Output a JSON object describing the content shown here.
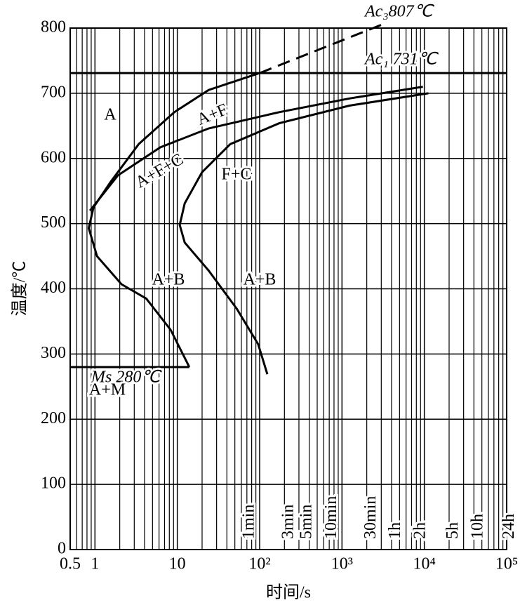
{
  "chart_data": {
    "type": "line",
    "x_label": "时间/s",
    "y_label": "温度/℃",
    "xscale": "log",
    "xlim": [
      0.5,
      100000
    ],
    "xticks": [
      {
        "value": 0.5,
        "label": "0.5"
      },
      1,
      10,
      {
        "value": 100,
        "label": "10²"
      },
      {
        "value": 1000,
        "label": "10³"
      },
      {
        "value": 10000,
        "label": "10⁴"
      },
      {
        "value": 100000,
        "label": "10⁵"
      }
    ],
    "ylim": [
      0,
      800
    ],
    "yticks": [
      0,
      100,
      200,
      300,
      400,
      500,
      600,
      700,
      800
    ],
    "grid": true,
    "minor_grid": true,
    "series": [
      {
        "color": "#000000",
        "dash": false,
        "x": [
          14,
          8.3,
          4.2,
          2.1,
          1.06,
          0.84,
          0.96,
          1.57,
          3.4,
          9.2,
          24,
          100
        ],
        "values": [
          280,
          337,
          385,
          407,
          450,
          493,
          525,
          565,
          622,
          671,
          705,
          731
        ]
      },
      {
        "color": "#000000",
        "dash": true,
        "label": "Ac₃807℃",
        "x": [
          100,
          3300
        ],
        "values": [
          731,
          807
        ]
      },
      {
        "color": "#000000",
        "dash": false,
        "x": [
          0.87,
          1.9,
          6.2,
          24,
          173,
          1230,
          9600
        ],
        "values": [
          520,
          574,
          617,
          646,
          671,
          692,
          710
        ]
      },
      {
        "color": "#000000",
        "dash": false,
        "x": [
          124,
          96,
          53,
          24,
          12.3,
          10.7,
          12.3,
          20,
          44,
          173,
          1230,
          11200
        ],
        "values": [
          269,
          315,
          369,
          428,
          471,
          498,
          531,
          579,
          622,
          654,
          681,
          700
        ]
      }
    ],
    "reference_lines": [
      {
        "label": "Ac₁ 731℃",
        "value": 731,
        "x": [
          0.5,
          100000
        ]
      },
      {
        "label": "Ms 280℃",
        "value": 280,
        "x": [
          0.5,
          14
        ]
      }
    ],
    "time_marks": [
      {
        "value": 60,
        "label": "1min"
      },
      {
        "value": 180,
        "label": "3min"
      },
      {
        "value": 300,
        "label": "5min"
      },
      {
        "value": 600,
        "label": "10min"
      },
      {
        "value": 1800,
        "label": "30min"
      },
      {
        "value": 3600,
        "label": "1h"
      },
      {
        "value": 7200,
        "label": "2h"
      },
      {
        "value": 18000,
        "label": "5h"
      },
      {
        "value": 36000,
        "label": "10h"
      },
      {
        "value": 86400,
        "label": "24h"
      }
    ],
    "annotations": [
      "A",
      "A+F",
      "A+F+C",
      "F+C",
      "A+B",
      "A+B",
      "A+M"
    ]
  }
}
